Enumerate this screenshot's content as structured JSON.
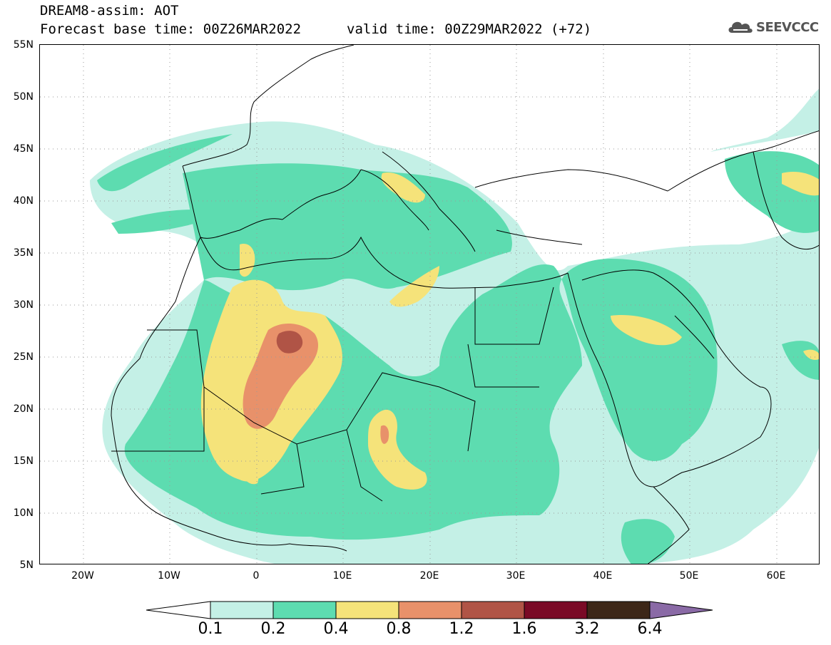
{
  "header": {
    "title": "DREAM8-assim: AOT",
    "base_time": "Forecast base time: 00Z26MAR2022",
    "valid_time": "valid time: 00Z29MAR2022 (+72)"
  },
  "logo": {
    "text": "SEEVCCC",
    "icon": "cloud-logo-icon"
  },
  "map": {
    "lat_labels": [
      "55N",
      "50N",
      "45N",
      "40N",
      "35N",
      "30N",
      "25N",
      "20N",
      "15N",
      "10N",
      "5N"
    ],
    "lon_labels": [
      "20W",
      "10W",
      "0",
      "10E",
      "20E",
      "30E",
      "40E",
      "50E",
      "60E"
    ],
    "lat_range": [
      5,
      55
    ],
    "lon_range": [
      -25,
      65
    ],
    "grid": "dotted"
  },
  "colorbar": {
    "levels": [
      "0.1",
      "0.2",
      "0.4",
      "0.8",
      "1.2",
      "1.6",
      "3.2",
      "6.4"
    ],
    "colors": [
      "#c4f0e6",
      "#5ddcb0",
      "#f5e37a",
      "#e8916a",
      "#b05446",
      "#7a0a26",
      "#3d2718",
      "#8a6aa6"
    ],
    "extend": "both"
  },
  "colors": {
    "aot_0_1": "#c4f0e6",
    "aot_0_2": "#5ddcb0",
    "aot_0_4": "#f5e37a",
    "aot_0_8": "#e8916a",
    "aot_1_2": "#b05446",
    "aot_1_6": "#7a0a26"
  }
}
